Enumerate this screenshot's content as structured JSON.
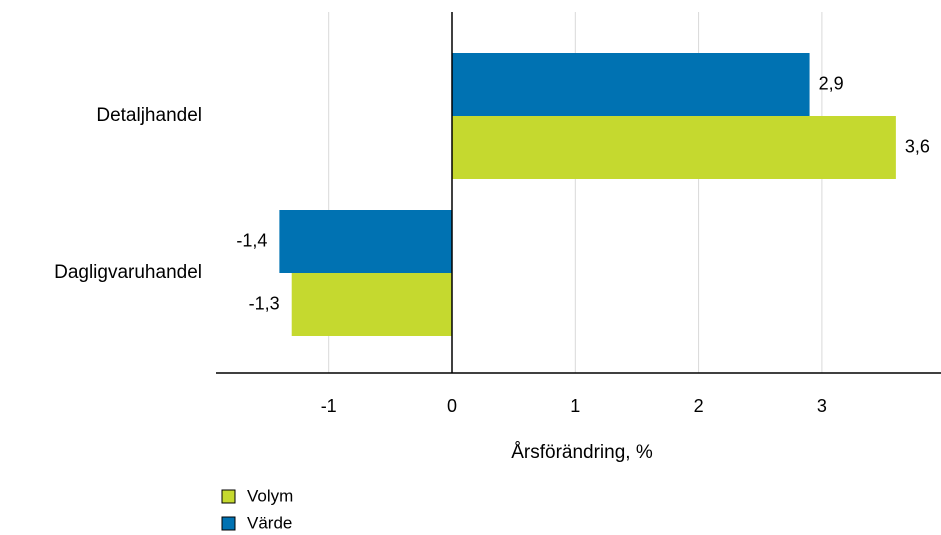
{
  "chart_data": {
    "type": "bar",
    "orientation": "horizontal",
    "categories": [
      "Detaljhandel",
      "Dagligvaruhandel"
    ],
    "series": [
      {
        "name": "Värde",
        "values": [
          2.9,
          -1.4
        ],
        "labels": [
          "2,9",
          "-1,4"
        ],
        "color": "#0072b2"
      },
      {
        "name": "Volym",
        "values": [
          3.6,
          -1.3
        ],
        "labels": [
          "3,6",
          "-1,3"
        ],
        "color": "#c5d92f"
      }
    ],
    "xlabel": "Årsförändring, %",
    "ylabel": "",
    "xlim": [
      -1.9,
      3.95
    ],
    "xticks": [
      -1,
      0,
      1,
      2,
      3
    ],
    "xtick_labels": [
      "-1",
      "0",
      "1",
      "2",
      "3"
    ],
    "grid": true,
    "legend": {
      "position": "bottom-left",
      "entries": [
        {
          "name": "Volym",
          "color": "#c5d92f"
        },
        {
          "name": "Värde",
          "color": "#0072b2"
        }
      ]
    }
  }
}
